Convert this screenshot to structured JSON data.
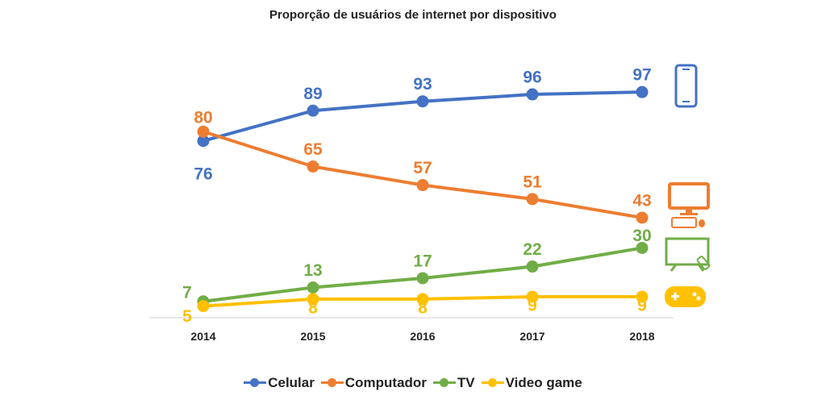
{
  "chart_data": {
    "type": "line",
    "title": "Proporção de usuários de internet por dispositivo",
    "categories": [
      "2014",
      "2015",
      "2016",
      "2017",
      "2018"
    ],
    "series": [
      {
        "name": "Celular",
        "values": [
          76,
          89,
          93,
          96,
          97
        ],
        "color": "#4472C4",
        "icon": "smartphone-icon"
      },
      {
        "name": "Computador",
        "values": [
          80,
          65,
          57,
          51,
          43
        ],
        "color": "#ED7D31",
        "icon": "desktop-computer-icon"
      },
      {
        "name": "TV",
        "values": [
          7,
          13,
          17,
          22,
          30
        ],
        "color": "#70AD47",
        "icon": "tv-icon"
      },
      {
        "name": "Video game",
        "values": [
          5,
          8,
          8,
          9,
          9
        ],
        "color": "#FFC000",
        "icon": "gamepad-icon"
      }
    ],
    "xlabel": "",
    "ylabel": "",
    "ylim": [
      0,
      100
    ],
    "grid": false,
    "legend": "bottom"
  }
}
